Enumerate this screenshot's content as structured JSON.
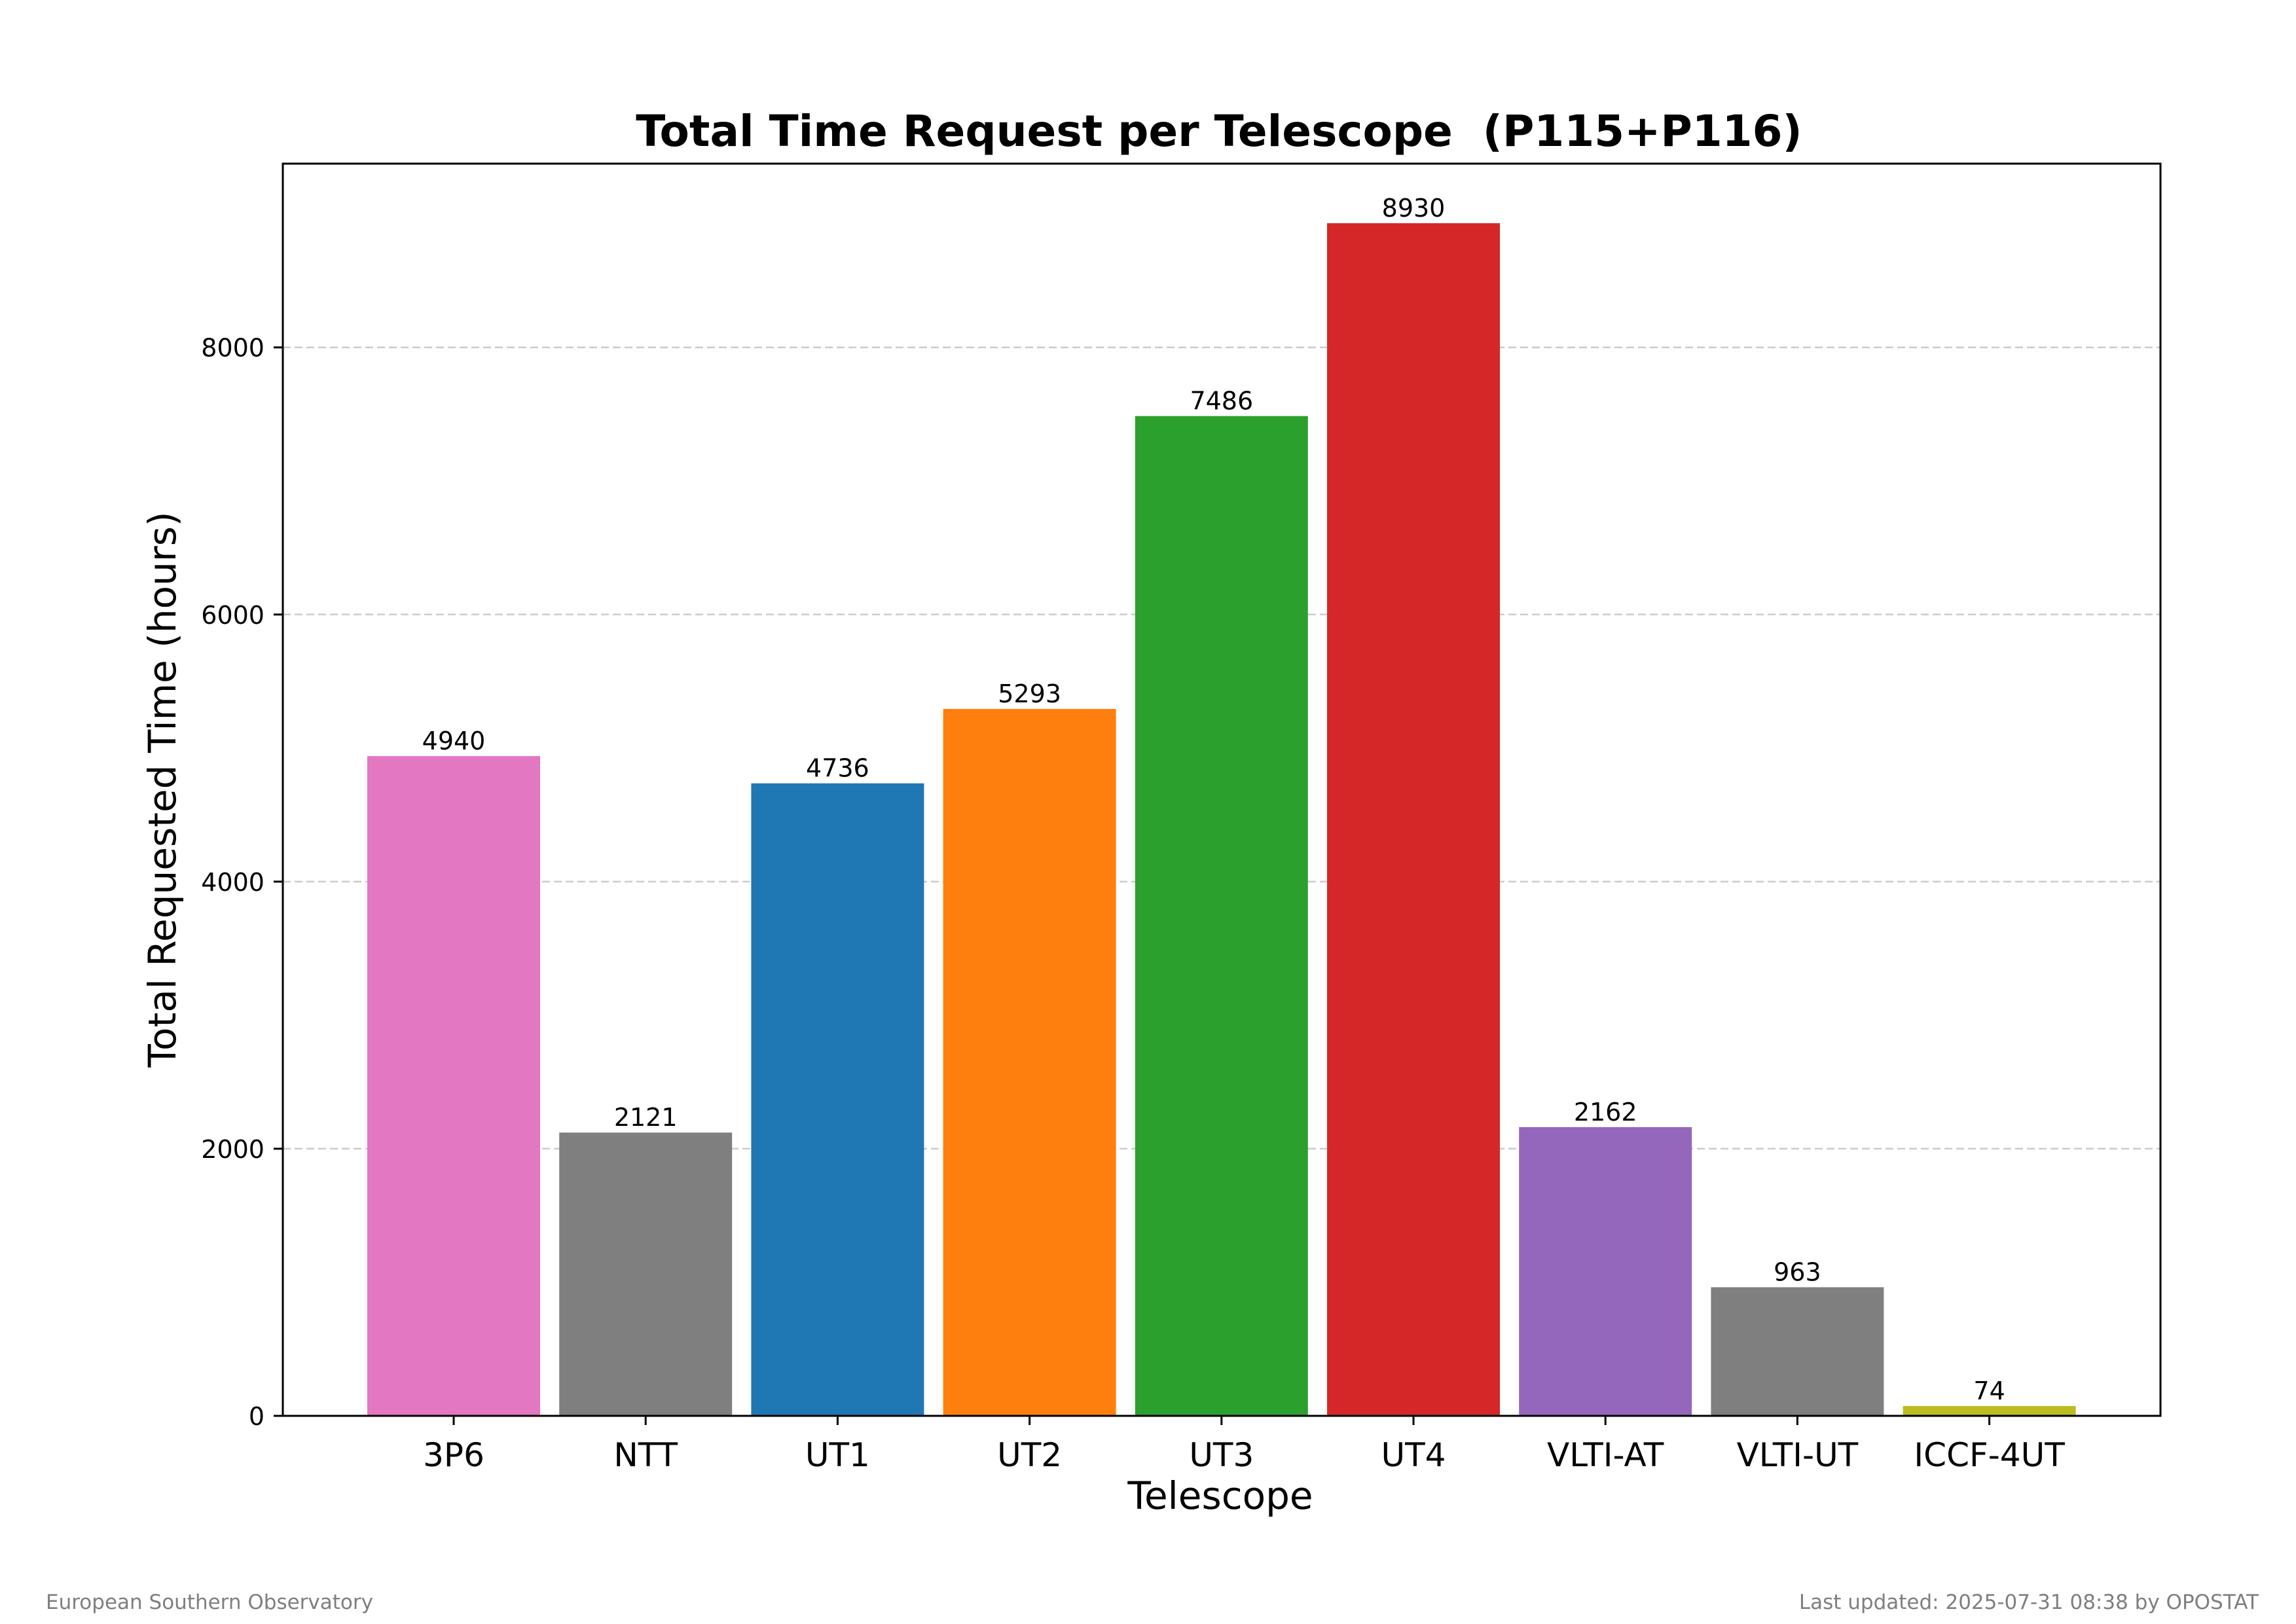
{
  "chart_data": {
    "type": "bar",
    "title": "Total Time Request per Telescope  (P115+P116)",
    "xlabel": "Telescope",
    "ylabel": "Total Requested Time (hours)",
    "categories": [
      "3P6",
      "NTT",
      "UT1",
      "UT2",
      "UT3",
      "UT4",
      "VLTI-AT",
      "VLTI-UT",
      "ICCF-4UT"
    ],
    "values": [
      4940,
      2121,
      4736,
      5293,
      7486,
      8930,
      2162,
      963,
      74
    ],
    "data_labels": [
      "4940",
      "2121",
      "4736",
      "5293",
      "7486",
      "8930",
      "2162",
      "963",
      "74"
    ],
    "colors": [
      "#e377c2",
      "#7f7f7f",
      "#1f77b4",
      "#ff7f0e",
      "#2ca02c",
      "#d62728",
      "#9467bd",
      "#7f7f7f",
      "#bcbd22"
    ],
    "yticks": [
      0,
      2000,
      4000,
      6000,
      8000
    ],
    "ytick_labels": [
      "0",
      "2000",
      "4000",
      "6000",
      "8000"
    ],
    "ylim": [
      0,
      9376
    ],
    "grid": "horizontal dashed",
    "legend": "none"
  },
  "footer": {
    "left": "European Southern Observatory",
    "right": "Last updated: 2025-07-31 08:38 by OPOSTAT"
  }
}
